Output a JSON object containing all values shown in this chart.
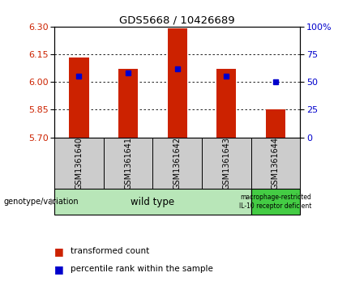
{
  "title": "GDS5668 / 10426689",
  "categories": [
    "GSM1361640",
    "GSM1361641",
    "GSM1361642",
    "GSM1361643",
    "GSM1361644"
  ],
  "bar_values": [
    6.13,
    6.07,
    6.29,
    6.07,
    5.85
  ],
  "bar_base": 5.7,
  "blue_values": [
    6.03,
    6.05,
    6.07,
    6.03,
    6.0
  ],
  "left_ylim": [
    5.7,
    6.3
  ],
  "left_yticks": [
    5.7,
    5.85,
    6.0,
    6.15,
    6.3
  ],
  "right_ylim": [
    0,
    100
  ],
  "right_yticks": [
    0,
    25,
    50,
    75,
    100
  ],
  "right_yticklabels": [
    "0",
    "25",
    "50",
    "75",
    "100%"
  ],
  "bar_color": "#cc2200",
  "blue_color": "#0000cc",
  "grid_color": "#000000",
  "bg_color": "#ffffff",
  "plot_bg": "#ffffff",
  "genotype_labels": [
    "wild type",
    "macrophage-restricted\nIL-10 receptor deficient"
  ],
  "genotype_colors_light": "#b8e6b8",
  "genotype_colors_dark": "#44cc44",
  "sample_box_color": "#cccccc",
  "legend_items": [
    "transformed count",
    "percentile rank within the sample"
  ],
  "bar_width": 0.4
}
